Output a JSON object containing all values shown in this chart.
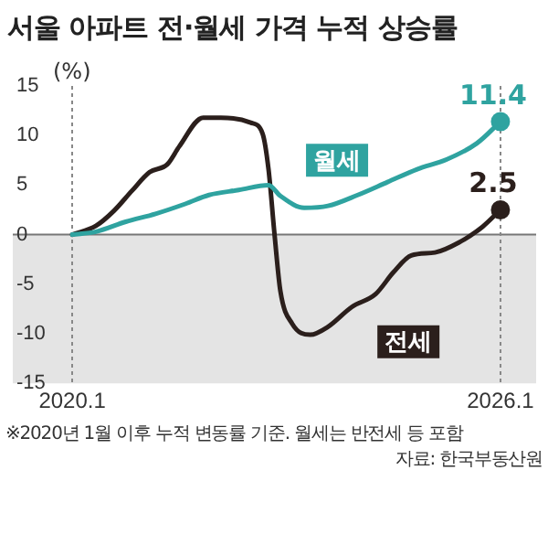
{
  "chart_data": {
    "type": "line",
    "title": "서울 아파트 전·월세 가격 누적 상승률",
    "ylabel": "(%)",
    "xlim": [
      "2019-03",
      "2026-07"
    ],
    "xticks": [
      {
        "value": "2020-01",
        "label": "2020.1"
      },
      {
        "value": "2026-01",
        "label": "2026.1"
      }
    ],
    "ylim": [
      -15,
      15
    ],
    "yticks": [
      -15,
      -10,
      -5,
      0,
      5,
      10,
      15
    ],
    "grid": "x",
    "legend": false,
    "marker": "none",
    "line_style": "solid",
    "bands": [
      {
        "axis": "y",
        "from": -15,
        "to": 0,
        "color": "#e4e4e4"
      }
    ],
    "ref_lines": [
      {
        "axis": "y",
        "value": 0,
        "color": "#777777"
      }
    ],
    "series": [
      {
        "name": "월세",
        "color": "#2fa3a0",
        "x": [
          "2020-01",
          "2020-05",
          "2020-10",
          "2021-03",
          "2021-08",
          "2021-12",
          "2022-05",
          "2022-10",
          "2022-12",
          "2023-04",
          "2023-08",
          "2024-01",
          "2024-06",
          "2024-11",
          "2025-04",
          "2025-09",
          "2026-01"
        ],
        "values": [
          0,
          0.3,
          1.3,
          2.1,
          3.1,
          4.0,
          4.5,
          5.0,
          3.9,
          2.7,
          2.9,
          4.0,
          5.3,
          6.6,
          7.6,
          9.2,
          11.4
        ],
        "value_labels": [
          null,
          null,
          null,
          null,
          null,
          null,
          null,
          null,
          null,
          null,
          null,
          null,
          null,
          null,
          null,
          null,
          "11.4"
        ]
      },
      {
        "name": "전세",
        "color": "#2b1f1c",
        "x": [
          "2020-01",
          "2020-05",
          "2020-08",
          "2020-11",
          "2021-02",
          "2021-05",
          "2021-07",
          "2021-11",
          "2022-02",
          "2022-07",
          "2022-09",
          "2022-10",
          "2022-11",
          "2022-12",
          "2023-02",
          "2023-05",
          "2023-08",
          "2023-12",
          "2024-04",
          "2024-07",
          "2024-10",
          "2025-02",
          "2025-06",
          "2025-10",
          "2026-01"
        ],
        "values": [
          0,
          0.9,
          2.4,
          4.4,
          6.3,
          7.1,
          8.9,
          11.8,
          11.8,
          11.3,
          10.2,
          6.6,
          0.1,
          -5.7,
          -9.0,
          -10.1,
          -9.3,
          -7.3,
          -6.0,
          -3.8,
          -2.1,
          -1.8,
          -0.8,
          0.8,
          2.5
        ],
        "value_labels": [
          null,
          null,
          null,
          null,
          null,
          null,
          null,
          null,
          null,
          null,
          null,
          null,
          null,
          null,
          null,
          null,
          null,
          null,
          null,
          null,
          null,
          null,
          null,
          null,
          "2.5"
        ]
      }
    ],
    "annotations": [
      "※2020년 1월 이후 누적 변동률 기준. 월세는 반전세 등 포함",
      "자료: 한국부동산원"
    ]
  }
}
